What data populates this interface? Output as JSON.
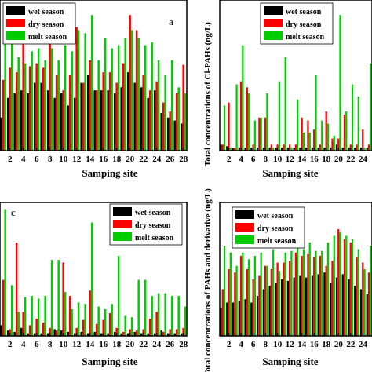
{
  "chart_data": [
    {
      "type": "bar",
      "panel_label": "a",
      "x": [
        1,
        2,
        3,
        4,
        5,
        6,
        7,
        8,
        9,
        10,
        11,
        12,
        13,
        14,
        15,
        16,
        17,
        18,
        19,
        20,
        21,
        22,
        23,
        24,
        25,
        26,
        27,
        28
      ],
      "xticks": [
        2,
        4,
        6,
        8,
        10,
        12,
        14,
        16,
        18,
        20,
        22,
        24,
        26,
        28
      ],
      "xlabel": "Samping site",
      "ylabel": "",
      "ylim": [
        0,
        100
      ],
      "legend": "top-left",
      "series": [
        {
          "name": "wet season",
          "color": "#000000",
          "values": [
            22,
            35,
            38,
            40,
            38,
            45,
            45,
            40,
            35,
            38,
            30,
            35,
            45,
            50,
            40,
            40,
            40,
            38,
            42,
            52,
            45,
            42,
            35,
            40,
            25,
            22,
            20,
            18
          ]
        },
        {
          "name": "dry season",
          "color": "#ff0000",
          "values": [
            47,
            55,
            52,
            73,
            56,
            58,
            55,
            85,
            50,
            40,
            50,
            82,
            45,
            60,
            40,
            52,
            52,
            45,
            58,
            90,
            80,
            50,
            40,
            46,
            32,
            26,
            38,
            57
          ]
        },
        {
          "name": "melt season",
          "color": "#00cc00",
          "values": [
            75,
            76,
            62,
            58,
            66,
            68,
            60,
            68,
            60,
            70,
            66,
            80,
            78,
            90,
            60,
            75,
            68,
            70,
            75,
            80,
            75,
            70,
            72,
            60,
            50,
            60,
            42,
            38
          ]
        }
      ]
    },
    {
      "type": "bar",
      "x": [
        1,
        2,
        3,
        4,
        5,
        6,
        7,
        8,
        9,
        10,
        11,
        12,
        13,
        14,
        15,
        16,
        17,
        18,
        19,
        20,
        21,
        22,
        23,
        24,
        25
      ],
      "xticks": [
        2,
        4,
        6,
        8,
        10,
        12,
        14,
        16,
        18,
        20,
        22,
        24
      ],
      "xlabel": "Samping site",
      "ylabel": "Total concentrations of Cl-PAHs (ng/L)",
      "ylim": [
        0,
        50
      ],
      "legend": "top-left",
      "series": [
        {
          "name": "wet season",
          "color": "#000000",
          "values": [
            2,
            1.5,
            1,
            1,
            1,
            1,
            1,
            1,
            1,
            1,
            1,
            1,
            1,
            1,
            1,
            1,
            1,
            1,
            1,
            2,
            1,
            1,
            1,
            1,
            1
          ]
        },
        {
          "name": "dry season",
          "color": "#ff0000",
          "values": [
            2,
            16,
            1,
            23,
            21,
            2,
            11,
            11,
            2,
            2,
            2,
            2,
            2,
            11,
            10,
            7,
            2,
            13,
            4,
            4,
            12,
            2,
            2,
            7,
            2
          ]
        },
        {
          "name": "melt season",
          "color": "#00cc00",
          "values": [
            15,
            1,
            22,
            35,
            19,
            10,
            11,
            19,
            1,
            23,
            31,
            1,
            17,
            6,
            6,
            25,
            10,
            9,
            5,
            45,
            13,
            22,
            18,
            1,
            29
          ]
        }
      ]
    },
    {
      "type": "bar",
      "panel_label": "c",
      "x": [
        1,
        2,
        3,
        4,
        5,
        6,
        7,
        8,
        9,
        10,
        11,
        12,
        13,
        14,
        15,
        16,
        17,
        18,
        19,
        20,
        21,
        22,
        23,
        24,
        25,
        26,
        27,
        28
      ],
      "xticks": [
        2,
        4,
        6,
        8,
        10,
        12,
        14,
        16,
        18,
        20,
        22,
        24,
        26,
        28
      ],
      "xlabel": "Samping site",
      "ylabel": "",
      "ylim": [
        0,
        100
      ],
      "legend": "top-right",
      "series": [
        {
          "name": "wet season",
          "color": "#000000",
          "values": [
            8,
            4,
            3,
            6,
            2,
            2,
            2,
            2,
            5,
            4,
            3,
            2,
            3,
            2,
            3,
            2,
            2,
            3,
            2,
            2,
            3,
            2,
            2,
            2,
            4,
            2,
            2,
            2
          ]
        },
        {
          "name": "dry season",
          "color": "#ff0000",
          "values": [
            42,
            5,
            70,
            18,
            8,
            13,
            10,
            6,
            4,
            55,
            30,
            6,
            12,
            34,
            9,
            12,
            17,
            6,
            3,
            5,
            4,
            5,
            13,
            18,
            3,
            5,
            5,
            6
          ]
        },
        {
          "name": "melt season",
          "color": "#00cc00",
          "values": [
            95,
            38,
            18,
            29,
            30,
            28,
            30,
            57,
            57,
            33,
            20,
            25,
            24,
            85,
            22,
            20,
            24,
            60,
            15,
            14,
            42,
            42,
            30,
            32,
            32,
            30,
            30,
            22
          ]
        }
      ]
    },
    {
      "type": "bar",
      "x": [
        1,
        2,
        3,
        4,
        5,
        6,
        7,
        8,
        9,
        10,
        11,
        12,
        13,
        14,
        15,
        16,
        17,
        18,
        19,
        20,
        21,
        22,
        23,
        24,
        25
      ],
      "xticks": [
        2,
        4,
        6,
        8,
        10,
        12,
        14,
        16,
        18,
        20,
        22,
        24
      ],
      "xlabel": "Samping site",
      "ylabel": "Total concentrations of PAHs and derivative (ng/L)",
      "ylim": [
        0,
        400
      ],
      "legend": "top-left",
      "series": [
        {
          "name": "wet season",
          "color": "#000000",
          "values": [
            85,
            100,
            100,
            105,
            110,
            100,
            120,
            140,
            150,
            160,
            170,
            165,
            175,
            180,
            175,
            180,
            185,
            190,
            160,
            175,
            185,
            170,
            150,
            140,
            125
          ]
        },
        {
          "name": "dry season",
          "color": "#ff0000",
          "values": [
            140,
            200,
            190,
            240,
            200,
            170,
            180,
            210,
            200,
            220,
            220,
            225,
            250,
            240,
            245,
            235,
            240,
            210,
            225,
            320,
            290,
            280,
            235,
            220,
            190
          ]
        },
        {
          "name": "melt season",
          "color": "#00cc00",
          "values": [
            270,
            250,
            210,
            250,
            230,
            240,
            250,
            210,
            260,
            195,
            250,
            255,
            280,
            260,
            280,
            255,
            255,
            280,
            300,
            310,
            300,
            290,
            260,
            200,
            270
          ]
        }
      ]
    }
  ]
}
